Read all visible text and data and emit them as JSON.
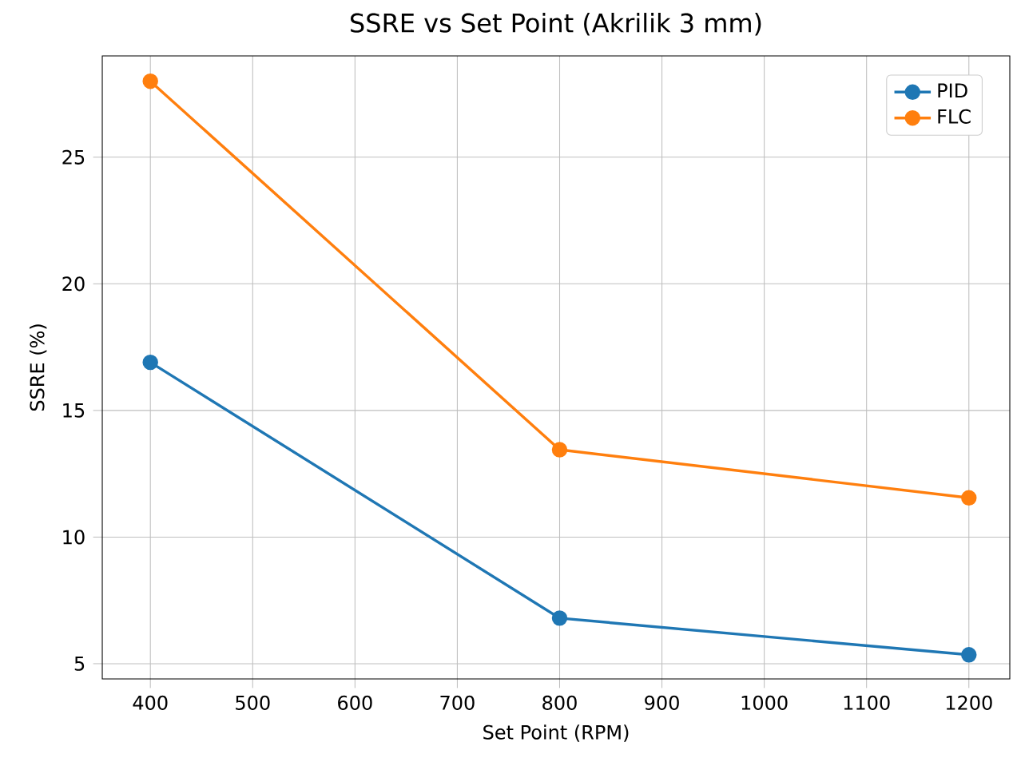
{
  "chart_data": {
    "type": "line",
    "title": "SSRE vs Set Point (Akrilik 3 mm)",
    "xlabel": "Set Point (RPM)",
    "ylabel": "SSRE (%)",
    "x": [
      400,
      800,
      1200
    ],
    "series": [
      {
        "name": "PID",
        "color": "#1f77b4",
        "values": [
          16.9,
          6.8,
          5.35
        ]
      },
      {
        "name": "FLC",
        "color": "#ff7f0e",
        "values": [
          28.0,
          13.45,
          11.55
        ]
      }
    ],
    "xlim": [
      353,
      1240
    ],
    "ylim": [
      4.4,
      29
    ],
    "xticks": [
      400,
      500,
      600,
      700,
      800,
      900,
      1000,
      1100,
      1200
    ],
    "yticks": [
      5,
      10,
      15,
      20,
      25
    ],
    "grid": true,
    "legend": "top right",
    "marker": "circle",
    "line_style": "solid"
  }
}
